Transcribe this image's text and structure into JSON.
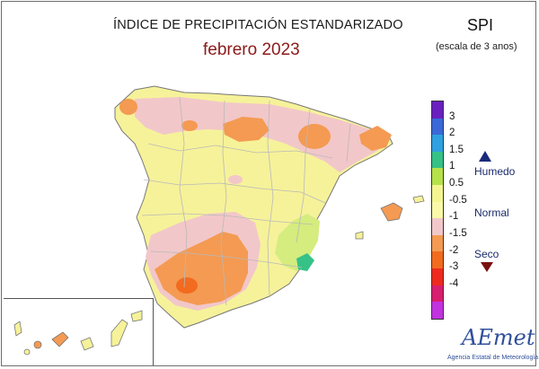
{
  "title": "ÍNDICE DE PRECIPITACIÓN ESTANDARIZADO",
  "subtitle": "febrero 2023",
  "index_name": "SPI",
  "index_scale": "(escala de 3 anos)",
  "legend": {
    "bins": [
      {
        "color": "#6a1fbf"
      },
      {
        "color": "#3a68d8"
      },
      {
        "color": "#2fa0e0"
      },
      {
        "color": "#36c287"
      },
      {
        "color": "#b5e24a"
      },
      {
        "color": "#f4f591"
      },
      {
        "color": "#f9f9a8"
      },
      {
        "color": "#f2c7c9"
      },
      {
        "color": "#f49a52"
      },
      {
        "color": "#f26b1f"
      },
      {
        "color": "#ee2a1e"
      },
      {
        "color": "#d81e6f"
      },
      {
        "color": "#c233e0"
      }
    ],
    "ticks": [
      "3",
      "2",
      "1.5",
      "1",
      "0.5",
      "-0.5",
      "-1",
      "-1.5",
      "-2",
      "-3",
      "-4"
    ],
    "humid_label": "Humedo",
    "normal_label": "Normal",
    "dry_label": "Seco"
  },
  "colors": {
    "mainland_base": "#f6f29a",
    "dry_moderate": "#f2c7c9",
    "dry_severe": "#f49a52",
    "wet_slight": "#d5ec7e",
    "wet_moderate": "#36c287",
    "border": "#b9b9b9",
    "coast": "#777777"
  },
  "logo": {
    "text": "AEmet",
    "subtext": "Agencia Estatal de Meteorología"
  }
}
